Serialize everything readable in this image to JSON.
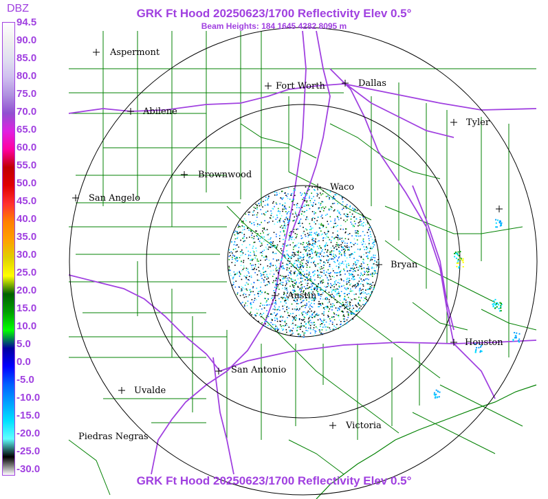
{
  "title": "GRK Ft Hood 20250623/1700 Reflectivity Elev 0.5°",
  "subtitle": "Beam Heights: 184 1645 4282 8095 m",
  "legend": {
    "unit": "DBZ",
    "labels": [
      "94.5",
      "90.0",
      "85.0",
      "80.0",
      "75.0",
      "70.0",
      "65.0",
      "60.0",
      "55.0",
      "50.0",
      "45.0",
      "40.0",
      "35.0",
      "30.0",
      "25.0",
      "20.0",
      "15.0",
      "10.0",
      "5.0",
      "0.0",
      "-5.0",
      "-10.0",
      "-15.0",
      "-20.0",
      "-25.0",
      "-30.0"
    ],
    "colors": [
      "#ffffff",
      "#f0f0f0",
      "#e0e0f0",
      "#d0c0f0",
      "#b090e0",
      "#9050d0",
      "#e020e0",
      "#ff00a0",
      "#c00000",
      "#e00000",
      "#ff3030",
      "#ff8000",
      "#ffa000",
      "#e0d000",
      "#ffff00",
      "#006000",
      "#00a000",
      "#00ff00",
      "#0000a0",
      "#0000ff",
      "#0060ff",
      "#00a0ff",
      "#00e0ff",
      "#60ffff",
      "#000000",
      "#ffffff"
    ]
  },
  "cities": [
    {
      "name": "Aspermont"
    },
    {
      "name": "Abilene"
    },
    {
      "name": "Fort Worth"
    },
    {
      "name": "Dallas"
    },
    {
      "name": "Tyler"
    },
    {
      "name": "Brownwood"
    },
    {
      "name": "Waco"
    },
    {
      "name": "San Angelo"
    },
    {
      "name": "Bryan"
    },
    {
      "name": "Austin"
    },
    {
      "name": "Houston"
    },
    {
      "name": "San Antonio"
    },
    {
      "name": "Uvalde"
    },
    {
      "name": "Victoria"
    },
    {
      "name": "Piedras Negras"
    }
  ],
  "colors": {
    "title": "#a040e0",
    "county_lines": "#008000",
    "highways": "#a040e0",
    "range_rings": "#000000"
  }
}
